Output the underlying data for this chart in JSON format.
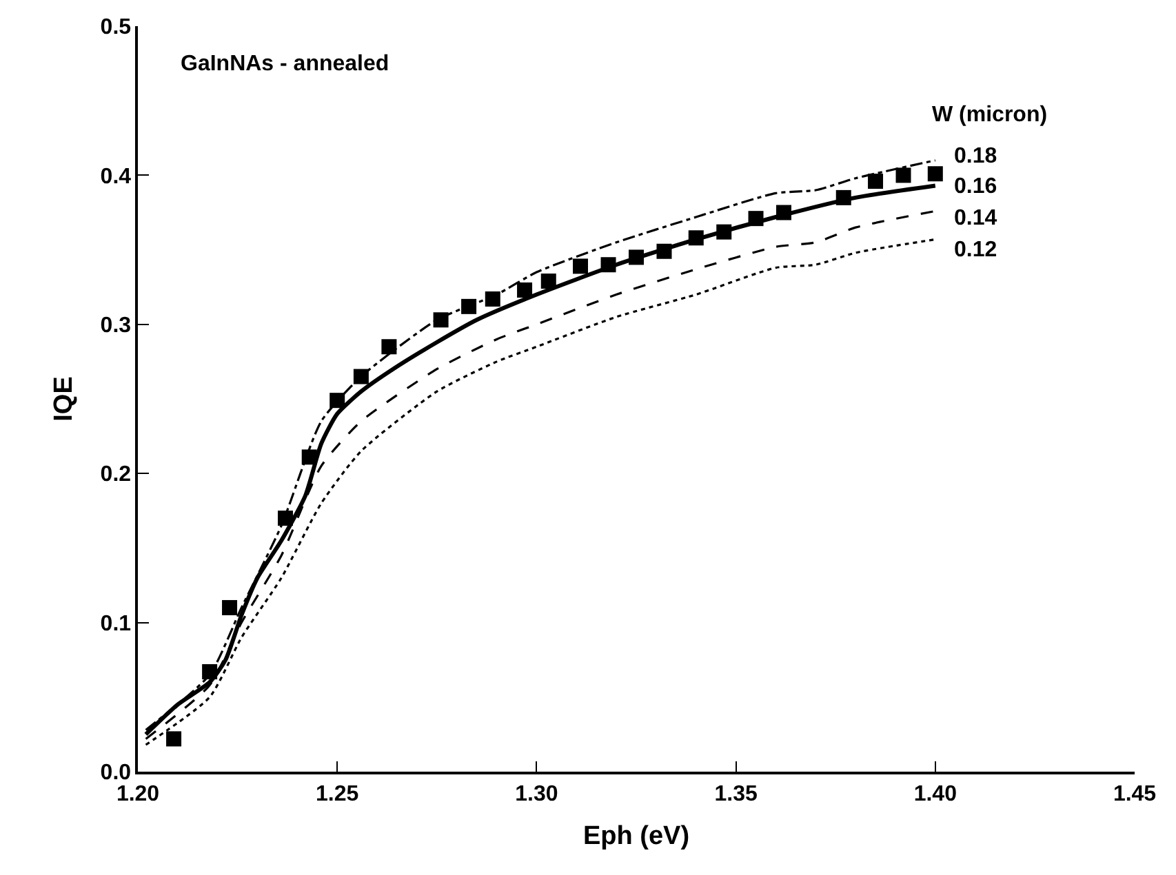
{
  "chart_data": {
    "type": "line",
    "title": "GaInNAs - annealed",
    "xlabel": "Eph (eV)",
    "ylabel": "IQE",
    "legend_title": "W (micron)",
    "xlim": [
      1.2,
      1.45
    ],
    "xticks": [
      {
        "value": 1.2,
        "label": "1.20"
      },
      {
        "value": 1.25,
        "label": "1.25"
      },
      {
        "value": 1.3,
        "label": "1.30"
      },
      {
        "value": 1.35,
        "label": "1.35"
      },
      {
        "value": 1.4,
        "label": "1.40"
      },
      {
        "value": 1.45,
        "label": "1.45"
      }
    ],
    "ylim": [
      0,
      0.5
    ],
    "yticks": [
      {
        "value": 0,
        "label": "0.0"
      },
      0.1,
      0.2,
      0.3,
      0.4,
      0.5
    ],
    "legend": false,
    "series": [
      {
        "type": "scatter",
        "marker": "square",
        "color": "#000000",
        "x": [
          1.209,
          1.218,
          1.223,
          1.237,
          1.243,
          1.25,
          1.256,
          1.263,
          1.276,
          1.283,
          1.289,
          1.297,
          1.303,
          1.311,
          1.318,
          1.325,
          1.332,
          1.34,
          1.347,
          1.355,
          1.362,
          1.377,
          1.385,
          1.392,
          1.4
        ],
        "values": [
          0.022,
          0.067,
          0.11,
          0.17,
          0.211,
          0.249,
          0.265,
          0.285,
          0.303,
          0.312,
          0.317,
          0.323,
          0.329,
          0.339,
          0.34,
          0.345,
          0.349,
          0.358,
          0.362,
          0.371,
          0.375,
          0.385,
          0.396,
          0.4,
          0.401
        ]
      },
      {
        "name": "0.18",
        "line_style": "dashdot",
        "color": "#000000",
        "x": [
          1.202,
          1.218,
          1.226,
          1.236,
          1.246,
          1.256,
          1.275,
          1.29,
          1.3,
          1.32,
          1.34,
          1.36,
          1.37,
          1.38,
          1.4
        ],
        "values": [
          0.028,
          0.065,
          0.11,
          0.165,
          0.235,
          0.265,
          0.303,
          0.32,
          0.335,
          0.355,
          0.372,
          0.388,
          0.39,
          0.398,
          0.41
        ]
      },
      {
        "name": "0.16",
        "line_style": "solid",
        "color": "#000000",
        "x": [
          1.202,
          1.21,
          1.218,
          1.222,
          1.226,
          1.23,
          1.236,
          1.242,
          1.246,
          1.25,
          1.256,
          1.264,
          1.275,
          1.285,
          1.3,
          1.32,
          1.34,
          1.36,
          1.38,
          1.4
        ],
        "values": [
          0.025,
          0.045,
          0.06,
          0.075,
          0.105,
          0.13,
          0.155,
          0.185,
          0.22,
          0.24,
          0.255,
          0.27,
          0.288,
          0.303,
          0.32,
          0.34,
          0.357,
          0.372,
          0.385,
          0.393
        ]
      },
      {
        "name": "0.14",
        "line_style": "dashed",
        "color": "#000000",
        "x": [
          1.202,
          1.218,
          1.226,
          1.236,
          1.246,
          1.256,
          1.275,
          1.29,
          1.3,
          1.32,
          1.34,
          1.36,
          1.37,
          1.38,
          1.4
        ],
        "values": [
          0.022,
          0.058,
          0.1,
          0.145,
          0.205,
          0.235,
          0.27,
          0.29,
          0.3,
          0.32,
          0.337,
          0.352,
          0.355,
          0.365,
          0.376
        ]
      },
      {
        "name": "0.12",
        "line_style": "dotted",
        "color": "#000000",
        "x": [
          1.202,
          1.218,
          1.226,
          1.236,
          1.246,
          1.256,
          1.275,
          1.29,
          1.3,
          1.32,
          1.34,
          1.36,
          1.37,
          1.38,
          1.4
        ],
        "values": [
          0.018,
          0.05,
          0.09,
          0.13,
          0.18,
          0.215,
          0.255,
          0.275,
          0.285,
          0.305,
          0.32,
          0.338,
          0.34,
          0.348,
          0.357
        ]
      }
    ]
  }
}
